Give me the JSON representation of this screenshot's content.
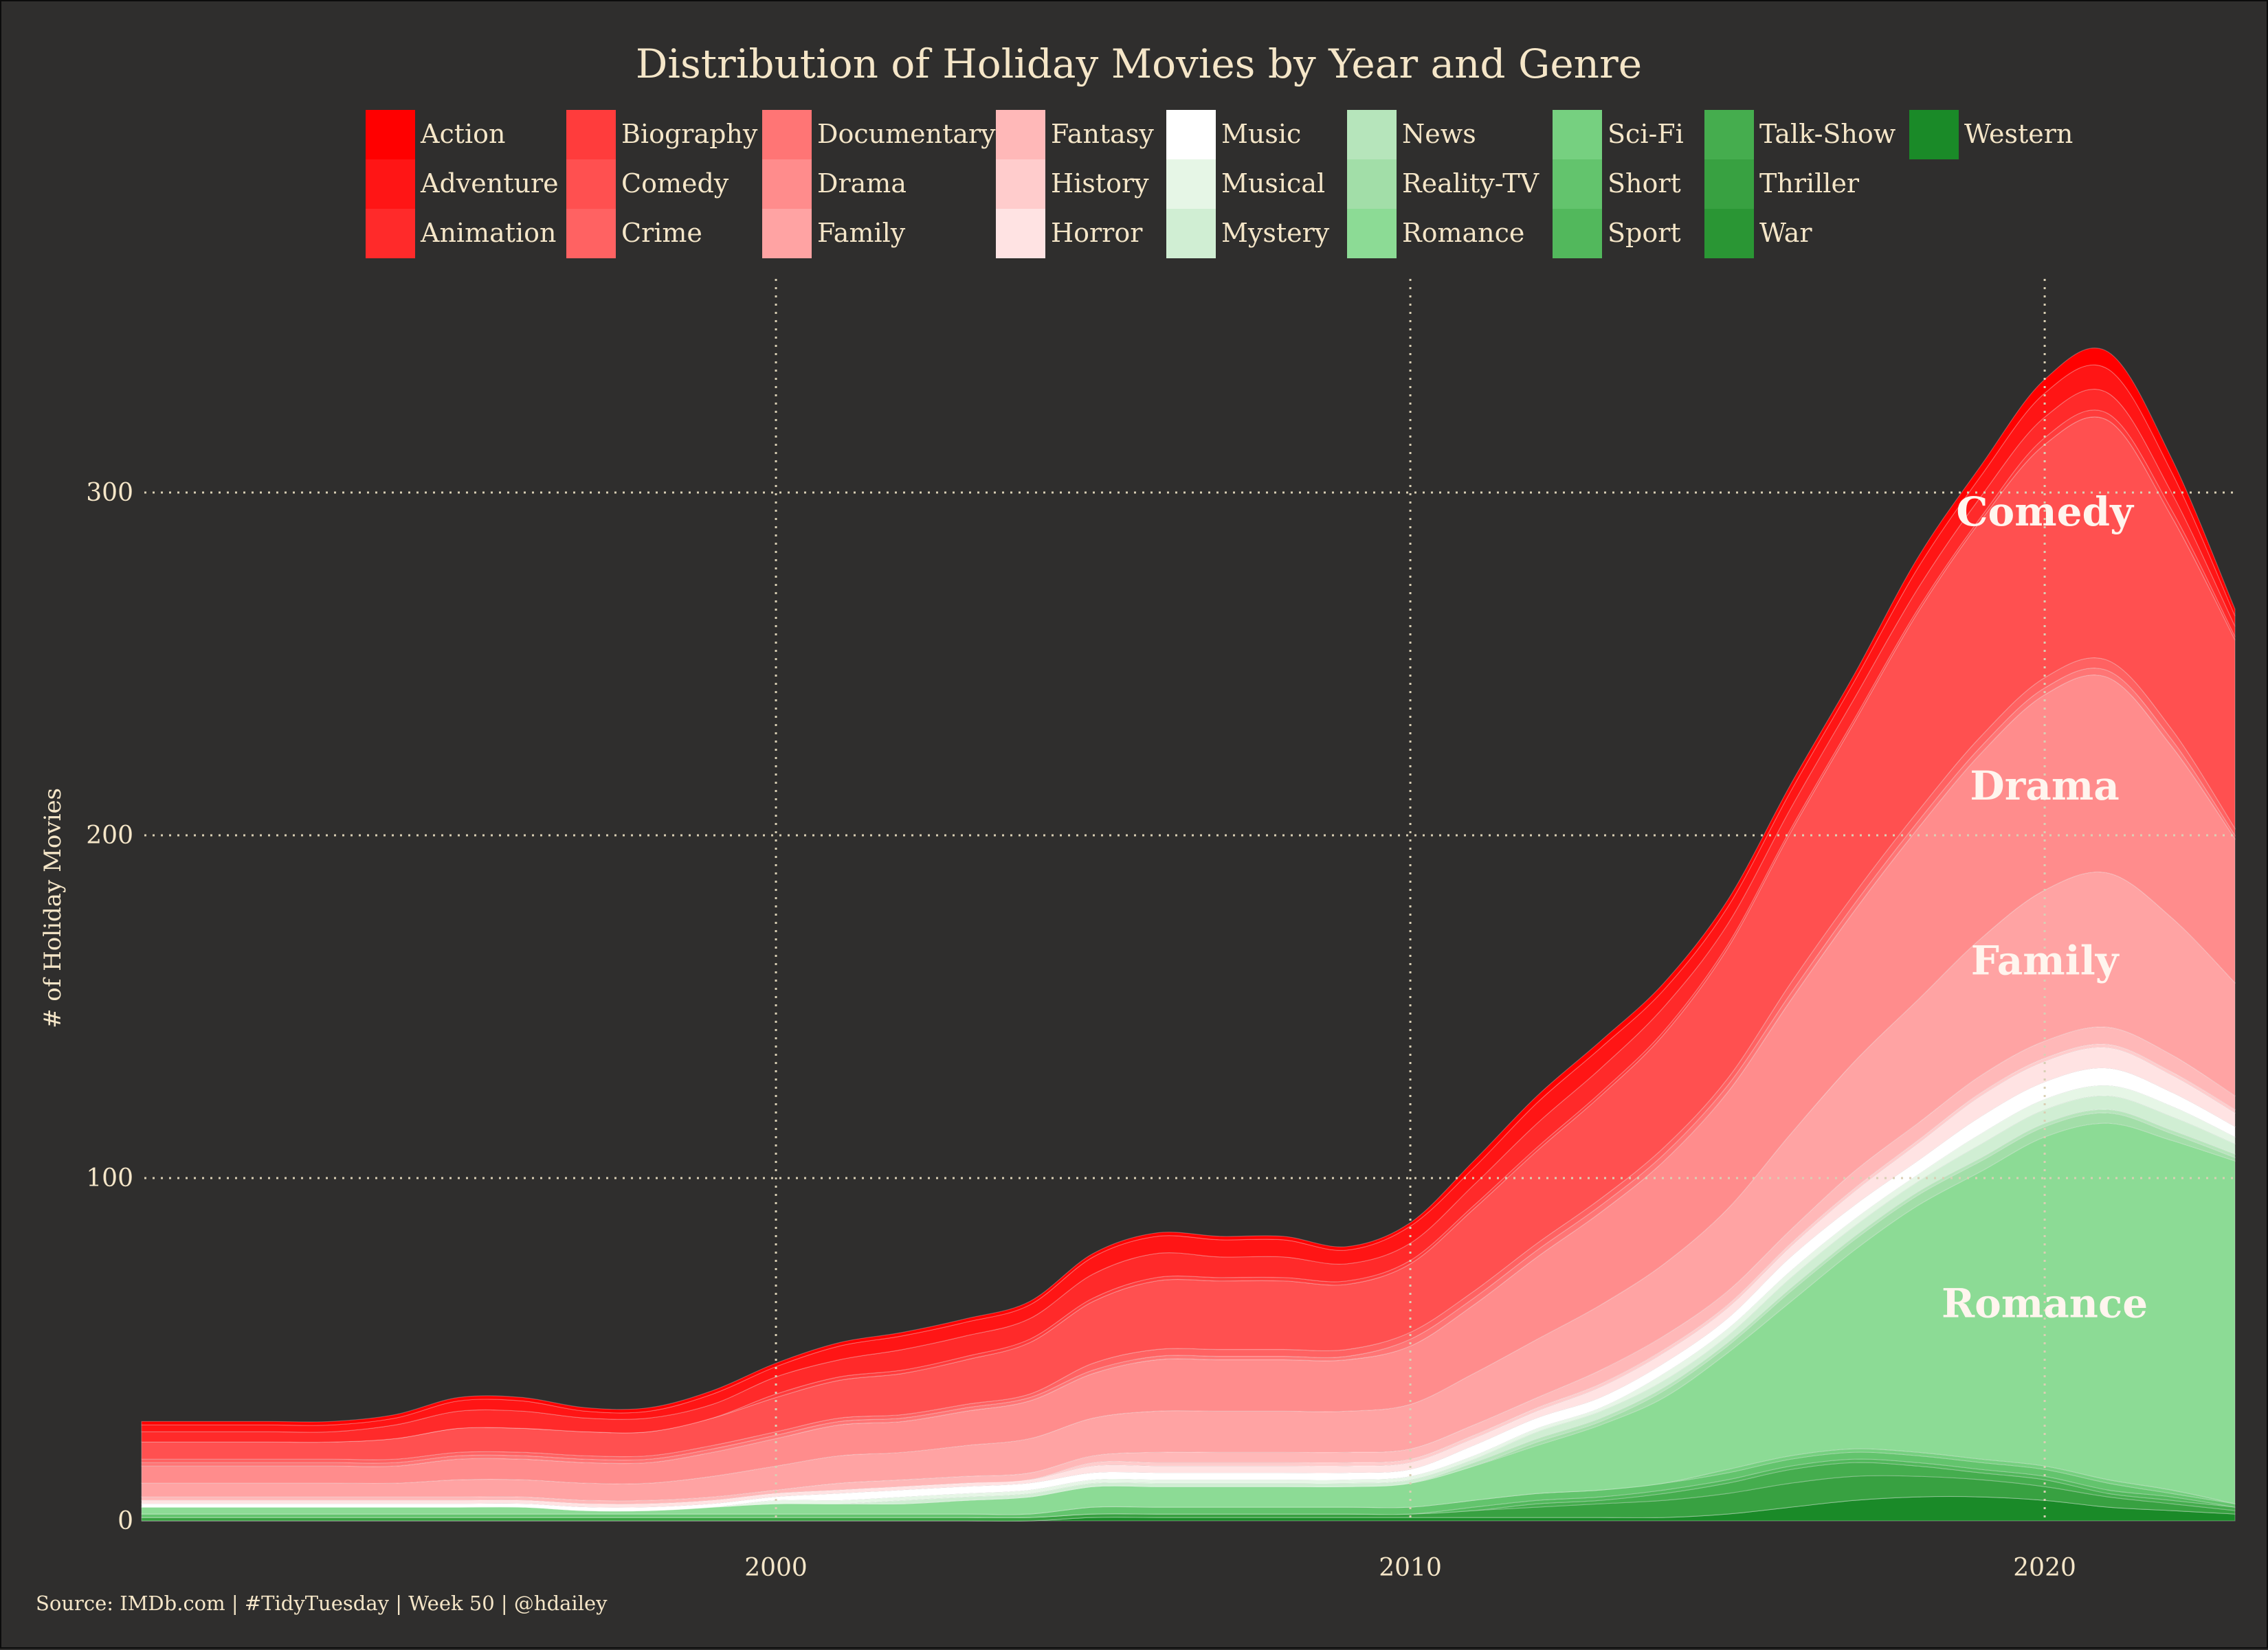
{
  "chart_data": {
    "type": "area",
    "title": "Distribution of Holiday Movies by Year and Genre",
    "ylabel": "# of Holiday Movies",
    "xlabel": "",
    "caption": "Source: IMDb.com | #TidyTuesday | Week 50 | @hdailey",
    "xlim": [
      1990,
      2023
    ],
    "ylim": [
      0,
      360
    ],
    "x_ticks": [
      2000,
      2010,
      2020
    ],
    "y_ticks": [
      0,
      100,
      200,
      300
    ],
    "grid": "dotted",
    "legend_position": "top",
    "background": "#2f2e2d",
    "text_color": "#f5e6c8",
    "annotations": [
      {
        "text": "Comedy",
        "x": 2020,
        "y": 294
      },
      {
        "text": "Drama",
        "x": 2020,
        "y": 214
      },
      {
        "text": "Family",
        "x": 2020,
        "y": 163
      },
      {
        "text": "Romance",
        "x": 2020,
        "y": 63
      }
    ],
    "x": [
      1990,
      1991,
      1992,
      1993,
      1994,
      1995,
      1996,
      1997,
      1998,
      1999,
      2000,
      2001,
      2002,
      2003,
      2004,
      2005,
      2006,
      2007,
      2008,
      2009,
      2010,
      2011,
      2012,
      2013,
      2014,
      2015,
      2016,
      2017,
      2018,
      2019,
      2020,
      2021,
      2022,
      2023
    ],
    "series": [
      {
        "name": "Action",
        "color": "#ff0000",
        "values": [
          1,
          1,
          1,
          1,
          1,
          1,
          1,
          1,
          1,
          1,
          1,
          1,
          1,
          1,
          1,
          1,
          1,
          1,
          1,
          1,
          1,
          2,
          2,
          2,
          2,
          2,
          2,
          2,
          3,
          3,
          4,
          5,
          4,
          2
        ]
      },
      {
        "name": "Adventure",
        "color": "#ff1515",
        "values": [
          2,
          2,
          2,
          2,
          2,
          3,
          3,
          2,
          2,
          3,
          3,
          4,
          4,
          4,
          4,
          5,
          5,
          5,
          5,
          4,
          5,
          5,
          6,
          6,
          5,
          5,
          5,
          5,
          6,
          6,
          7,
          7,
          6,
          3
        ]
      },
      {
        "name": "Animation",
        "color": "#ff2a2a",
        "values": [
          3,
          3,
          3,
          3,
          4,
          5,
          5,
          4,
          4,
          4,
          5,
          5,
          6,
          6,
          6,
          7,
          7,
          6,
          6,
          5,
          5,
          6,
          7,
          7,
          7,
          6,
          6,
          6,
          6,
          6,
          6,
          6,
          5,
          3
        ]
      },
      {
        "name": "Biography",
        "color": "#ff3c3c",
        "values": [
          0,
          0,
          0,
          0,
          0,
          0,
          0,
          0,
          0,
          0,
          1,
          1,
          1,
          1,
          1,
          1,
          1,
          1,
          1,
          1,
          1,
          1,
          1,
          1,
          1,
          1,
          1,
          1,
          1,
          1,
          2,
          2,
          2,
          1
        ]
      },
      {
        "name": "Comedy",
        "color": "#ff5050",
        "values": [
          5,
          5,
          5,
          5,
          6,
          7,
          7,
          7,
          7,
          8,
          10,
          11,
          12,
          13,
          15,
          18,
          20,
          20,
          20,
          19,
          20,
          24,
          27,
          30,
          33,
          38,
          44,
          50,
          58,
          63,
          68,
          70,
          62,
          55
        ]
      },
      {
        "name": "Crime",
        "color": "#ff6262",
        "values": [
          1,
          1,
          1,
          1,
          1,
          1,
          1,
          1,
          1,
          1,
          1,
          1,
          1,
          1,
          1,
          2,
          2,
          2,
          2,
          2,
          2,
          2,
          2,
          2,
          2,
          2,
          3,
          3,
          3,
          3,
          3,
          3,
          3,
          2
        ]
      },
      {
        "name": "Documentary",
        "color": "#ff7575",
        "values": [
          1,
          1,
          1,
          1,
          1,
          1,
          1,
          1,
          1,
          1,
          1,
          1,
          1,
          1,
          1,
          1,
          1,
          1,
          1,
          1,
          2,
          2,
          2,
          2,
          2,
          2,
          2,
          2,
          2,
          2,
          2,
          2,
          2,
          1
        ]
      },
      {
        "name": "Drama",
        "color": "#ff8c8c",
        "values": [
          5,
          5,
          5,
          5,
          5,
          6,
          6,
          6,
          6,
          7,
          8,
          9,
          9,
          10,
          11,
          13,
          15,
          15,
          15,
          15,
          17,
          20,
          24,
          27,
          30,
          34,
          39,
          44,
          50,
          54,
          57,
          57,
          50,
          42
        ]
      },
      {
        "name": "Family",
        "color": "#ffa3a3",
        "values": [
          4,
          4,
          4,
          4,
          4,
          5,
          5,
          5,
          5,
          6,
          7,
          8,
          8,
          9,
          10,
          11,
          12,
          12,
          12,
          12,
          13,
          15,
          17,
          19,
          21,
          24,
          28,
          32,
          36,
          40,
          44,
          45,
          40,
          33
        ]
      },
      {
        "name": "Fantasy",
        "color": "#ffb8b8",
        "values": [
          1,
          1,
          1,
          1,
          1,
          1,
          1,
          1,
          1,
          1,
          1,
          2,
          2,
          2,
          2,
          2,
          3,
          3,
          3,
          3,
          3,
          3,
          3,
          4,
          4,
          4,
          4,
          5,
          5,
          5,
          5,
          5,
          5,
          4
        ]
      },
      {
        "name": "History",
        "color": "#ffcccc",
        "values": [
          0,
          0,
          0,
          0,
          0,
          0,
          0,
          0,
          0,
          0,
          0,
          0,
          0,
          0,
          0,
          1,
          1,
          1,
          1,
          1,
          1,
          1,
          1,
          1,
          1,
          1,
          1,
          1,
          1,
          1,
          1,
          1,
          1,
          1
        ]
      },
      {
        "name": "Horror",
        "color": "#ffe3e3",
        "values": [
          1,
          1,
          1,
          1,
          1,
          1,
          1,
          1,
          1,
          1,
          1,
          1,
          1,
          1,
          1,
          2,
          2,
          2,
          2,
          2,
          2,
          2,
          2,
          3,
          3,
          3,
          3,
          4,
          5,
          6,
          6,
          6,
          5,
          4
        ]
      },
      {
        "name": "Music",
        "color": "#ffffff",
        "values": [
          1,
          1,
          1,
          1,
          1,
          1,
          1,
          1,
          1,
          1,
          1,
          2,
          2,
          2,
          2,
          2,
          2,
          2,
          2,
          2,
          2,
          3,
          3,
          3,
          3,
          3,
          4,
          4,
          4,
          5,
          5,
          5,
          4,
          3
        ]
      },
      {
        "name": "Musical",
        "color": "#e6f6e6",
        "values": [
          0,
          0,
          0,
          0,
          0,
          0,
          0,
          0,
          0,
          0,
          1,
          1,
          1,
          1,
          1,
          1,
          1,
          1,
          1,
          1,
          1,
          1,
          1,
          1,
          2,
          2,
          2,
          2,
          2,
          3,
          3,
          3,
          3,
          2
        ]
      },
      {
        "name": "Mystery",
        "color": "#d0eed3",
        "values": [
          0,
          0,
          0,
          0,
          0,
          0,
          0,
          0,
          0,
          0,
          0,
          0,
          1,
          1,
          1,
          1,
          1,
          1,
          1,
          1,
          1,
          1,
          2,
          2,
          2,
          2,
          3,
          3,
          3,
          4,
          4,
          4,
          4,
          3
        ]
      },
      {
        "name": "News",
        "color": "#b6e5bb",
        "values": [
          0,
          0,
          0,
          0,
          0,
          0,
          0,
          0,
          0,
          0,
          0,
          0,
          0,
          0,
          0,
          0,
          0,
          0,
          0,
          0,
          0,
          1,
          1,
          1,
          1,
          1,
          1,
          1,
          1,
          1,
          1,
          1,
          1,
          1
        ]
      },
      {
        "name": "Reality-TV",
        "color": "#a2dea8",
        "values": [
          0,
          0,
          0,
          0,
          0,
          0,
          0,
          0,
          0,
          0,
          0,
          0,
          0,
          0,
          0,
          0,
          0,
          0,
          0,
          0,
          0,
          0,
          1,
          1,
          2,
          2,
          3,
          3,
          3,
          3,
          3,
          3,
          2,
          1
        ]
      },
      {
        "name": "Romance",
        "color": "#8cdb95",
        "values": [
          2,
          2,
          2,
          2,
          2,
          2,
          2,
          1,
          1,
          2,
          3,
          3,
          3,
          4,
          5,
          6,
          6,
          6,
          6,
          6,
          7,
          10,
          14,
          19,
          25,
          34,
          45,
          58,
          72,
          84,
          96,
          104,
          102,
          100
        ]
      },
      {
        "name": "Sci-Fi",
        "color": "#76d080",
        "values": [
          0,
          0,
          0,
          0,
          0,
          0,
          0,
          0,
          0,
          0,
          0,
          0,
          0,
          0,
          0,
          0,
          0,
          0,
          0,
          0,
          0,
          0,
          0,
          0,
          0,
          1,
          1,
          1,
          1,
          1,
          1,
          1,
          1,
          0
        ]
      },
      {
        "name": "Short",
        "color": "#63c46d",
        "values": [
          1,
          1,
          1,
          1,
          1,
          1,
          1,
          1,
          1,
          1,
          1,
          1,
          1,
          1,
          1,
          2,
          2,
          2,
          2,
          2,
          2,
          2,
          2,
          2,
          2,
          2,
          2,
          2,
          2,
          2,
          2,
          2,
          1,
          1
        ]
      },
      {
        "name": "Sport",
        "color": "#52b85c",
        "values": [
          0,
          0,
          0,
          0,
          0,
          0,
          0,
          0,
          0,
          0,
          0,
          0,
          0,
          0,
          0,
          0,
          0,
          0,
          0,
          0,
          0,
          1,
          1,
          1,
          1,
          1,
          1,
          1,
          1,
          1,
          1,
          1,
          1,
          0
        ]
      },
      {
        "name": "Talk-Show",
        "color": "#45ad4e",
        "values": [
          0,
          0,
          0,
          0,
          0,
          0,
          0,
          0,
          0,
          0,
          0,
          0,
          0,
          0,
          0,
          0,
          0,
          0,
          0,
          0,
          0,
          0,
          1,
          1,
          2,
          3,
          4,
          4,
          3,
          2,
          2,
          1,
          1,
          1
        ]
      },
      {
        "name": "Thriller",
        "color": "#38a141",
        "values": [
          1,
          1,
          1,
          1,
          1,
          1,
          1,
          1,
          1,
          1,
          1,
          1,
          1,
          1,
          1,
          1,
          1,
          1,
          1,
          1,
          1,
          2,
          3,
          4,
          5,
          6,
          7,
          7,
          6,
          5,
          4,
          3,
          2,
          1
        ]
      },
      {
        "name": "War",
        "color": "#2a9634",
        "values": [
          0,
          0,
          0,
          0,
          0,
          0,
          0,
          0,
          0,
          0,
          0,
          0,
          0,
          0,
          0,
          0,
          0,
          0,
          0,
          0,
          0,
          0,
          0,
          0,
          0,
          0,
          0,
          0,
          0,
          0,
          0,
          0,
          0,
          0
        ]
      },
      {
        "name": "Western",
        "color": "#1a8a28",
        "values": [
          0,
          0,
          0,
          0,
          0,
          0,
          0,
          0,
          0,
          0,
          0,
          0,
          0,
          0,
          0,
          1,
          1,
          1,
          1,
          1,
          1,
          1,
          1,
          1,
          1,
          2,
          4,
          6,
          7,
          7,
          6,
          4,
          3,
          2
        ]
      }
    ]
  }
}
